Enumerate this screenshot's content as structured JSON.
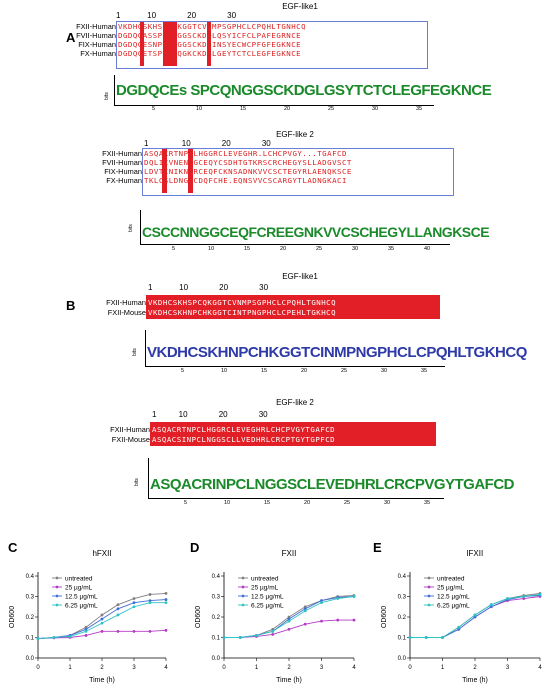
{
  "panel_a": {
    "letter": "A",
    "egf1": {
      "title": "EGF-like1",
      "numbers": "1            10              20              30",
      "rows": [
        {
          "label": "FXII-Human",
          "seq": "VKDHCSKHSPCQKGGTCVNMPSGPHCLCPQHLTGNHCQ"
        },
        {
          "label": "FVII-Human",
          "seq": "DGDQCASSPCQNGGSCKDQLQSYICFCLPAFEGRNCE"
        },
        {
          "label": "FIX-Human",
          "seq": "DGDQCESNPCLNGGSCKDDINSYECWCPFGFEGKNCE"
        },
        {
          "label": "FX-Human",
          "seq": "DGDQCETSPCQNQGKCKDGLGEYTCTCLEGFEGKNCE"
        }
      ],
      "logo": "DGDQCEs SPCQNGGSCKDGLGSYTCTCLEGFEGKNCE",
      "bits_label": "bits",
      "ticks": [
        "5",
        "10",
        "15",
        "20",
        "25",
        "30",
        "35"
      ]
    },
    "egf2": {
      "title": "EGF-like 2",
      "numbers": "1               10              20              30",
      "rows": [
        {
          "label": "FXII-Human",
          "seq": "ASQACRTNPCLHGGRCLEVEGHR.LCHCPVGY...TGAFCD"
        },
        {
          "label": "FVII-Human",
          "seq": "DQLICVNENGGCEQYCSDHTGTKRSCRCHEGYSLLADGVSCT"
        },
        {
          "label": "FIX-Human",
          "seq": "LDVTCNIKNGRCEQFCKNSADNKVVCSCTEGYRLAENQKSCE"
        },
        {
          "label": "FX-Human",
          "seq": "TKLCSLDNGDCDQFCHE.EQNSVVCSCARGYTLADNGKACI"
        }
      ],
      "logo": "CSCCNNGGCEQFCREEGNKVVCSCHEGYLLANGKSCE",
      "bits_label": "bits",
      "ticks": [
        "5",
        "10",
        "15",
        "20",
        "25",
        "30",
        "35",
        "40"
      ]
    }
  },
  "panel_b": {
    "letter": "B",
    "egf1": {
      "title": "EGF-like1",
      "numbers": "1            10              20              30",
      "rows": [
        {
          "label": "FXII-Human",
          "seq": "VKDHCSKHSPCQKGGTCVNMPSGPHCLCPQHLTGNHCQ"
        },
        {
          "label": "FXII-Mouse",
          "seq": "VKDHCSKHNPCHKGGTCINTPNGPHCLCPEHLTGKHCQ"
        }
      ],
      "logo": "VKDHCSKHNPCHKGGTCINMPNGPHCLCPQHLTGKHCQ",
      "bits_label": "bits",
      "ticks": [
        "5",
        "10",
        "15",
        "20",
        "25",
        "30",
        "35"
      ]
    },
    "egf2": {
      "title": "EGF-like 2",
      "numbers": "1          10              20              30",
      "rows": [
        {
          "label": "FXII-Human",
          "seq": "ASQACRTNPCLHGGRCLEVEGHRLCHCPVGYTGAFCD"
        },
        {
          "label": "FXII-Mouse",
          "seq": "ASQACSINPCLNGGSCLLVEDHRLCRCPTGYTGPFCD"
        }
      ],
      "logo": "ASQACRINPCLNGGSCLEVEDHRLCRCPVGYTGAFCD",
      "bits_label": "bits",
      "ticks": [
        "5",
        "10",
        "15",
        "20",
        "25",
        "30",
        "35"
      ]
    }
  },
  "colors": {
    "red": "#e21f26",
    "blue_box": "#6a7fd6",
    "gray": "#808080",
    "purple": "#b33bc6",
    "blue": "#3f6fd8",
    "teal": "#2ec4c4"
  },
  "chart_data": [
    {
      "panel": "C",
      "type": "line",
      "title": "hFXII",
      "xlabel": "Time (h)",
      "ylabel": "OD600",
      "xlim": [
        0,
        4
      ],
      "ylim": [
        0,
        0.4
      ],
      "xticks": [
        "0",
        "1",
        "2",
        "3",
        "4"
      ],
      "yticks": [
        "0.0",
        "0.1",
        "0.2",
        "0.3",
        "0.4"
      ],
      "x": [
        0,
        0.5,
        1,
        1.5,
        2,
        2.5,
        3,
        3.5,
        4
      ],
      "legend_position": "top-left",
      "series": [
        {
          "name": "untreated",
          "color": "#808080",
          "values": [
            0.095,
            0.1,
            0.11,
            0.15,
            0.21,
            0.26,
            0.29,
            0.31,
            0.315
          ]
        },
        {
          "name": "25 µg/mL",
          "color": "#b33bc6",
          "values": [
            0.095,
            0.098,
            0.1,
            0.11,
            0.13,
            0.13,
            0.13,
            0.13,
            0.135
          ]
        },
        {
          "name": "12.5 µg/mL",
          "color": "#3f6fd8",
          "values": [
            0.095,
            0.1,
            0.11,
            0.14,
            0.19,
            0.24,
            0.27,
            0.28,
            0.285
          ]
        },
        {
          "name": "6.25 µg/mL",
          "color": "#2ec4c4",
          "values": [
            0.095,
            0.1,
            0.105,
            0.13,
            0.17,
            0.21,
            0.25,
            0.27,
            0.27
          ]
        }
      ]
    },
    {
      "panel": "D",
      "type": "line",
      "title": "FXII",
      "xlabel": "Time (h)",
      "ylabel": "OD600",
      "xlim": [
        0,
        4
      ],
      "ylim": [
        0,
        0.4
      ],
      "xticks": [
        "0",
        "1",
        "2",
        "3",
        "4"
      ],
      "yticks": [
        "0.0",
        "0.1",
        "0.2",
        "0.3",
        "0.4"
      ],
      "x": [
        0,
        0.5,
        1,
        1.5,
        2,
        2.5,
        3,
        3.5,
        4
      ],
      "legend_position": "top-left",
      "series": [
        {
          "name": "untreated",
          "color": "#808080",
          "values": [
            0.1,
            0.1,
            0.11,
            0.14,
            0.2,
            0.25,
            0.28,
            0.3,
            0.305
          ]
        },
        {
          "name": "25 µg/mL",
          "color": "#b33bc6",
          "values": [
            0.1,
            0.1,
            0.105,
            0.115,
            0.14,
            0.165,
            0.18,
            0.185,
            0.185
          ]
        },
        {
          "name": "12.5 µg/mL",
          "color": "#3f6fd8",
          "values": [
            0.1,
            0.1,
            0.11,
            0.13,
            0.19,
            0.24,
            0.28,
            0.295,
            0.3
          ]
        },
        {
          "name": "6.25 µg/mL",
          "color": "#2ec4c4",
          "values": [
            0.1,
            0.1,
            0.11,
            0.13,
            0.18,
            0.23,
            0.27,
            0.29,
            0.3
          ]
        }
      ]
    },
    {
      "panel": "E",
      "type": "line",
      "title": "lFXII",
      "xlabel": "Time (h)",
      "ylabel": "OD600",
      "xlim": [
        0,
        4
      ],
      "ylim": [
        0,
        0.4
      ],
      "xticks": [
        "0",
        "1",
        "2",
        "3",
        "4"
      ],
      "yticks": [
        "0.0",
        "0.1",
        "0.2",
        "0.3",
        "0.4"
      ],
      "x": [
        0,
        0.5,
        1,
        1.5,
        2,
        2.5,
        3,
        3.5,
        4
      ],
      "legend_position": "top-left",
      "series": [
        {
          "name": "untreated",
          "color": "#808080",
          "values": [
            0.1,
            0.1,
            0.1,
            0.15,
            0.21,
            0.26,
            0.29,
            0.305,
            0.315
          ]
        },
        {
          "name": "25 µg/mL",
          "color": "#b33bc6",
          "values": [
            0.1,
            0.1,
            0.1,
            0.14,
            0.2,
            0.25,
            0.28,
            0.29,
            0.3
          ]
        },
        {
          "name": "12.5 µg/mL",
          "color": "#3f6fd8",
          "values": [
            0.1,
            0.1,
            0.1,
            0.14,
            0.2,
            0.25,
            0.285,
            0.3,
            0.305
          ]
        },
        {
          "name": "6.25 µg/mL",
          "color": "#2ec4c4",
          "values": [
            0.1,
            0.1,
            0.1,
            0.15,
            0.21,
            0.26,
            0.29,
            0.3,
            0.31
          ]
        }
      ]
    }
  ]
}
